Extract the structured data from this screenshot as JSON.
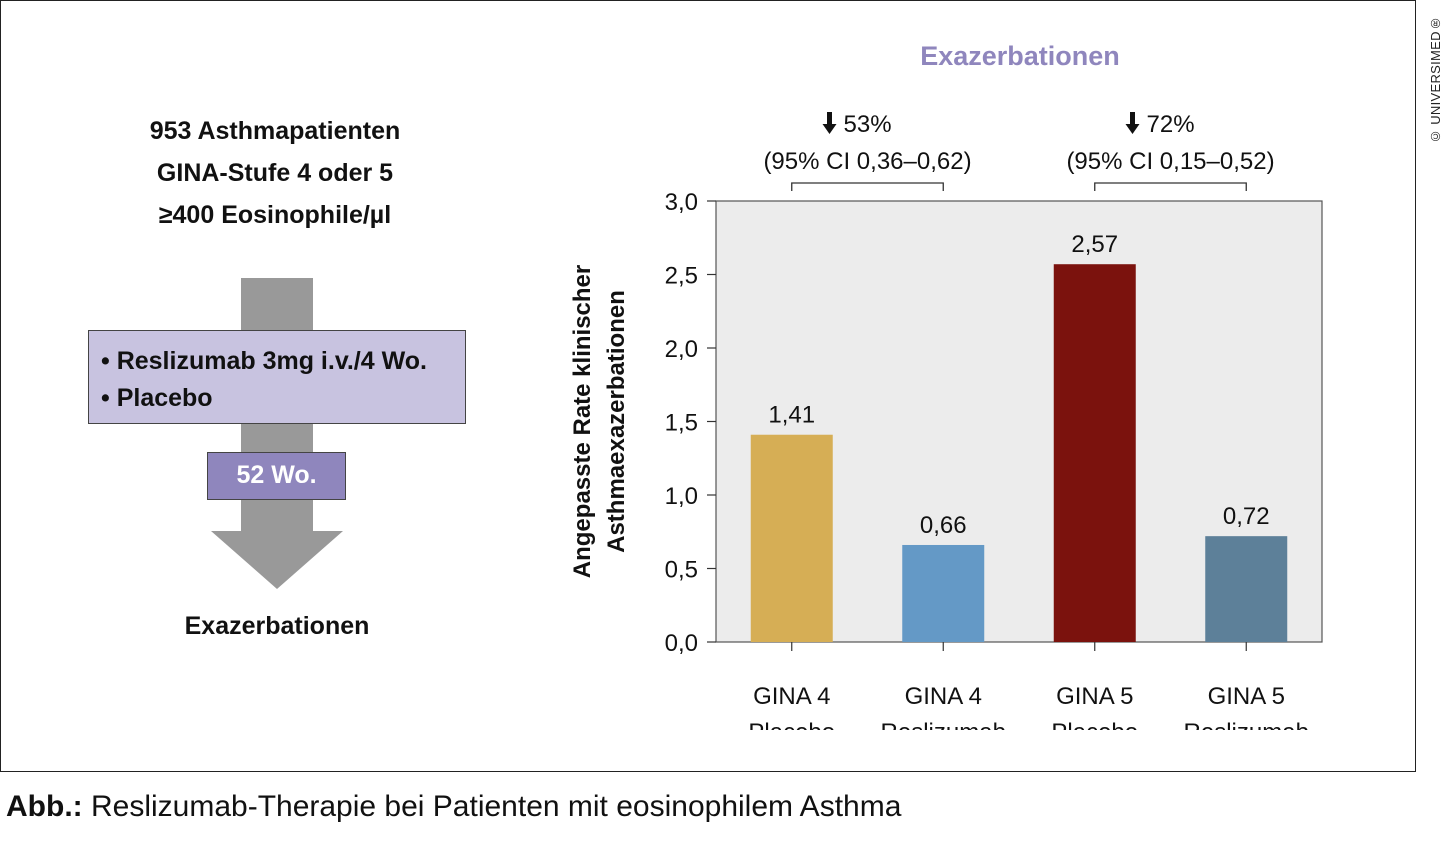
{
  "copyright": "© UNIVERSIMED®",
  "study": {
    "lines": [
      "953 Asthmapatienten",
      "GINA-Stufe 4 oder 5",
      "≥400 Eosinophile/µl"
    ],
    "arms": [
      "• Reslizumab 3mg i.v./4 Wo.",
      "• Placebo"
    ],
    "duration": "52 Wo.",
    "endpoint": "Exazerbationen"
  },
  "chart_data": {
    "type": "bar",
    "title": "Exazerbationen",
    "ylabel_lines": [
      "Angepasste Rate klinischer",
      "Asthmaexazerbationen"
    ],
    "categories": [
      [
        "GINA 4",
        "Placebo"
      ],
      [
        "GINA 4",
        "Reslizumab"
      ],
      [
        "GINA 5",
        "Placebo"
      ],
      [
        "GINA 5",
        "Reslizumab"
      ]
    ],
    "values": [
      1.41,
      0.66,
      2.57,
      0.72
    ],
    "value_labels": [
      "1,41",
      "0,66",
      "2,57",
      "0,72"
    ],
    "bar_colors": [
      "#d6ae55",
      "#6499c6",
      "#7b120d",
      "#5d8099"
    ],
    "ylim": [
      0,
      3.0
    ],
    "yticks": [
      0,
      0.5,
      1.0,
      1.5,
      2.0,
      2.5,
      3.0
    ],
    "ytick_labels": [
      "0,0",
      "0,5",
      "1,0",
      "1,5",
      "2,0",
      "2,5",
      "3,0"
    ],
    "plot_background": "#ececec",
    "title_color": "#8f86bd",
    "comparisons": [
      {
        "from": 0,
        "to": 1,
        "reduction": "53%",
        "ci": "(95% CI 0,36–0,62)"
      },
      {
        "from": 2,
        "to": 3,
        "reduction": "72%",
        "ci": "(95% CI 0,15–0,52)"
      }
    ],
    "grid": false
  },
  "caption": {
    "lead": "Abb.:",
    "text": " Reslizumab-Therapie bei Patienten mit eosinophilem Asthma"
  }
}
